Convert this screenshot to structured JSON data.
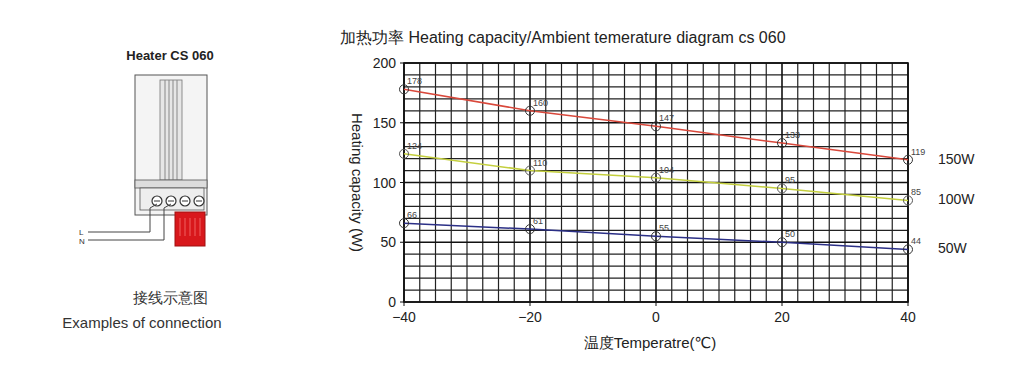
{
  "chart_data": {
    "type": "line",
    "title": "加热功率 Heating capacity/Ambient temerature diagram cs 060",
    "x_label": "温度Temperatre(℃)",
    "y_label": "Heating capacity (W)",
    "x": [
      -40,
      -20,
      0,
      20,
      40
    ],
    "series": [
      {
        "name": "150W",
        "color": "#d9483b",
        "values": [
          178,
          160,
          147,
          133,
          119
        ]
      },
      {
        "name": "100W",
        "color": "#c4cf3e",
        "values": [
          124,
          110,
          104,
          95,
          85
        ]
      },
      {
        "name": "50W",
        "color": "#2b2f86",
        "values": [
          66,
          61,
          55,
          50,
          44
        ]
      }
    ],
    "xlim": [
      -40,
      40
    ],
    "xticks": [
      -40,
      -20,
      0,
      20,
      40
    ],
    "ylim": [
      0,
      200
    ],
    "yticks": [
      0,
      50,
      100,
      150,
      200
    ],
    "grid": true,
    "data_labels": true,
    "marker": "circle"
  },
  "illustration": {
    "title": "Heater CS 060",
    "wire_labels": [
      "L",
      "N"
    ],
    "caption": [
      "接线示意图",
      "Examples of connection"
    ]
  }
}
